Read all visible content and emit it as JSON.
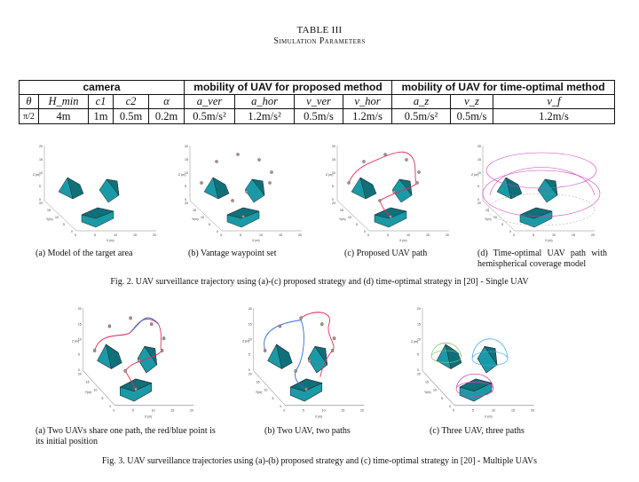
{
  "table": {
    "title": "TABLE III",
    "subtitle": "Simulation Parameters",
    "groups": [
      "camera",
      "mobility of UAV for proposed method",
      "mobility of UAV for time-optimal method"
    ],
    "headers": [
      "θ",
      "H_min",
      "c1",
      "c2",
      "α",
      "a_ver",
      "a_hor",
      "v_ver",
      "v_hor",
      "a_z",
      "v_z",
      "v_f"
    ],
    "values": [
      "π/2",
      "4m",
      "1m",
      "0.5m",
      "0.2m",
      "0.5m/s²",
      "1.2m/s²",
      "0.5m/s",
      "1.2m/s",
      "0.5m/s²",
      "0.5m/s",
      "1.2m/s"
    ]
  },
  "fig2": {
    "captions": [
      "(a) Model of the target area",
      "(b) Vantage waypoint set",
      "(c) Proposed UAV path",
      "(d) Time-optimal UAV path with hemispherical coverage model"
    ],
    "caption": "Fig. 2. UAV surveillance trajectory using (a)-(c) proposed strategy and (d) time-optimal strategy in [20] - Single UAV"
  },
  "fig3": {
    "captions": [
      "(a) Two UAVs share one path, the red/blue point is its initial position",
      "(b) Two UAV, two paths",
      "(c) Three UAV, three paths"
    ],
    "caption": "Fig. 3. UAV surveillance trajectories using (a)-(b) proposed strategy and (c) time-optimal strategy in [20] - Multiple UAVs"
  },
  "axes": {
    "x_label": "X (m)",
    "y_label": "Y(m)",
    "z_label": "Z (m)",
    "z_ticks": [
      "20",
      "15",
      "10",
      "5",
      "0"
    ],
    "x_ticks": [
      "0",
      "5",
      "10",
      "15",
      "20"
    ],
    "y_ticks": [
      "20",
      "15",
      "10",
      "5",
      "0"
    ]
  },
  "colors": {
    "building": "#1a9aa6",
    "building_dark": "#10707a",
    "path_red": "#e0305a",
    "path_blue": "#3a6ad0",
    "path_magenta": "#d040c0",
    "hemi_green": "#7ac070",
    "hemi_cyan": "#40a8e0",
    "waypoint": "#b09090"
  }
}
